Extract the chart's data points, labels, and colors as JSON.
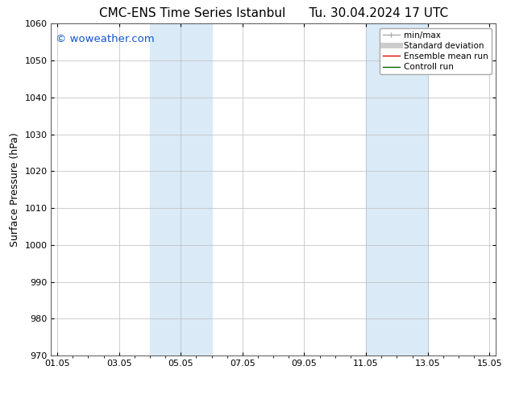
{
  "title_left": "CMC-ENS Time Series Istanbul",
  "title_right": "Tu. 30.04.2024 17 UTC",
  "ylabel": "Surface Pressure (hPa)",
  "xlabel": "",
  "ylim": [
    970,
    1060
  ],
  "yticks": [
    970,
    980,
    990,
    1000,
    1010,
    1020,
    1030,
    1040,
    1050,
    1060
  ],
  "xtick_labels": [
    "01.05",
    "03.05",
    "05.05",
    "07.05",
    "09.05",
    "11.05",
    "13.05",
    "15.05"
  ],
  "xtick_positions": [
    0,
    2,
    4,
    6,
    8,
    10,
    12,
    14
  ],
  "xlim": [
    -0.2,
    14.2
  ],
  "shaded_bands": [
    {
      "xmin": 3.0,
      "xmax": 5.0,
      "color": "#daeaf7"
    },
    {
      "xmin": 10.0,
      "xmax": 12.0,
      "color": "#daeaf7"
    }
  ],
  "watermark_text": "© woweather.com",
  "watermark_color": "#1155cc",
  "background_color": "#ffffff",
  "legend_items": [
    {
      "label": "min/max",
      "color": "#aaaaaa",
      "lw": 1.0
    },
    {
      "label": "Standard deviation",
      "color": "#cccccc",
      "lw": 5
    },
    {
      "label": "Ensemble mean run",
      "color": "#dd0000",
      "lw": 1.0
    },
    {
      "label": "Controll run",
      "color": "#006600",
      "lw": 1.0
    }
  ],
  "grid_color": "#bbbbbb",
  "grid_lw": 0.5,
  "title_fontsize": 11,
  "tick_fontsize": 8,
  "ylabel_fontsize": 9,
  "legend_fontsize": 7.5,
  "watermark_fontsize": 9.5
}
